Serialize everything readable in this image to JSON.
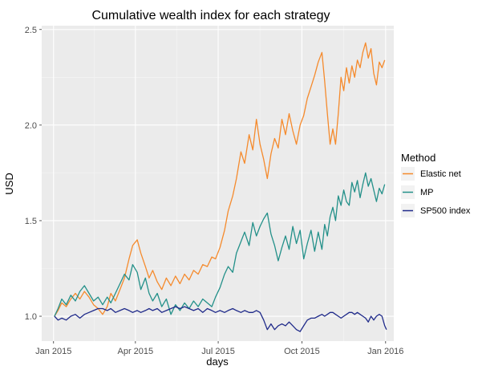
{
  "chart_data": {
    "type": "line",
    "title": "Cumulative wealth index for each strategy",
    "xlabel": "days",
    "ylabel": "USD",
    "x_ticks": [
      "Jan 2015",
      "Apr 2015",
      "Jul 2015",
      "Oct 2015",
      "Jan 2016"
    ],
    "x_tick_dates": [
      "2015-01-01",
      "2015-04-01",
      "2015-07-01",
      "2015-10-01",
      "2016-01-01"
    ],
    "xlim": [
      "2014-12-19",
      "2016-01-10"
    ],
    "y_ticks": [
      "1.0",
      "1.5",
      "2.0",
      "2.5"
    ],
    "y_tick_values": [
      1.0,
      1.5,
      2.0,
      2.5
    ],
    "ylim": [
      0.87,
      2.52
    ],
    "grid": true,
    "legend": {
      "title": "Method",
      "position": "right",
      "entries": [
        "Elastic net",
        "MP",
        "SP500 index"
      ]
    },
    "series": [
      {
        "name": "Elastic net",
        "color": "#f58a2c",
        "points": [
          [
            "2015-01-02",
            1.0
          ],
          [
            "2015-01-06",
            1.03
          ],
          [
            "2015-01-10",
            1.07
          ],
          [
            "2015-01-15",
            1.05
          ],
          [
            "2015-01-20",
            1.09
          ],
          [
            "2015-01-25",
            1.12
          ],
          [
            "2015-01-30",
            1.09
          ],
          [
            "2015-02-04",
            1.13
          ],
          [
            "2015-02-09",
            1.1
          ],
          [
            "2015-02-14",
            1.06
          ],
          [
            "2015-02-19",
            1.04
          ],
          [
            "2015-02-24",
            1.01
          ],
          [
            "2015-03-01",
            1.05
          ],
          [
            "2015-03-05",
            1.12
          ],
          [
            "2015-03-10",
            1.08
          ],
          [
            "2015-03-15",
            1.14
          ],
          [
            "2015-03-20",
            1.2
          ],
          [
            "2015-03-25",
            1.3
          ],
          [
            "2015-03-29",
            1.37
          ],
          [
            "2015-04-03",
            1.4
          ],
          [
            "2015-04-07",
            1.33
          ],
          [
            "2015-04-12",
            1.26
          ],
          [
            "2015-04-16",
            1.2
          ],
          [
            "2015-04-20",
            1.24
          ],
          [
            "2015-04-25",
            1.18
          ],
          [
            "2015-04-30",
            1.14
          ],
          [
            "2015-05-05",
            1.2
          ],
          [
            "2015-05-10",
            1.16
          ],
          [
            "2015-05-15",
            1.21
          ],
          [
            "2015-05-20",
            1.17
          ],
          [
            "2015-05-25",
            1.22
          ],
          [
            "2015-05-30",
            1.19
          ],
          [
            "2015-06-04",
            1.24
          ],
          [
            "2015-06-09",
            1.22
          ],
          [
            "2015-06-14",
            1.27
          ],
          [
            "2015-06-19",
            1.26
          ],
          [
            "2015-06-24",
            1.31
          ],
          [
            "2015-06-28",
            1.3
          ],
          [
            "2015-07-03",
            1.36
          ],
          [
            "2015-07-08",
            1.45
          ],
          [
            "2015-07-12",
            1.55
          ],
          [
            "2015-07-17",
            1.63
          ],
          [
            "2015-07-21",
            1.72
          ],
          [
            "2015-07-26",
            1.86
          ],
          [
            "2015-07-30",
            1.8
          ],
          [
            "2015-08-04",
            1.95
          ],
          [
            "2015-08-08",
            1.87
          ],
          [
            "2015-08-12",
            2.03
          ],
          [
            "2015-08-16",
            1.9
          ],
          [
            "2015-08-20",
            1.82
          ],
          [
            "2015-08-24",
            1.72
          ],
          [
            "2015-08-28",
            1.85
          ],
          [
            "2015-09-01",
            1.93
          ],
          [
            "2015-09-05",
            1.88
          ],
          [
            "2015-09-09",
            2.03
          ],
          [
            "2015-09-13",
            1.95
          ],
          [
            "2015-09-17",
            2.06
          ],
          [
            "2015-09-21",
            1.97
          ],
          [
            "2015-09-25",
            1.9
          ],
          [
            "2015-09-29",
            2.0
          ],
          [
            "2015-10-03",
            2.05
          ],
          [
            "2015-10-07",
            2.14
          ],
          [
            "2015-10-11",
            2.2
          ],
          [
            "2015-10-15",
            2.26
          ],
          [
            "2015-10-19",
            2.33
          ],
          [
            "2015-10-23",
            2.38
          ],
          [
            "2015-10-26",
            2.23
          ],
          [
            "2015-10-29",
            2.06
          ],
          [
            "2015-11-01",
            1.9
          ],
          [
            "2015-11-04",
            1.98
          ],
          [
            "2015-11-07",
            1.9
          ],
          [
            "2015-11-10",
            2.06
          ],
          [
            "2015-11-13",
            2.25
          ],
          [
            "2015-11-16",
            2.18
          ],
          [
            "2015-11-19",
            2.3
          ],
          [
            "2015-11-22",
            2.22
          ],
          [
            "2015-11-25",
            2.31
          ],
          [
            "2015-11-28",
            2.25
          ],
          [
            "2015-12-01",
            2.34
          ],
          [
            "2015-12-04",
            2.3
          ],
          [
            "2015-12-07",
            2.38
          ],
          [
            "2015-12-10",
            2.43
          ],
          [
            "2015-12-13",
            2.35
          ],
          [
            "2015-12-16",
            2.4
          ],
          [
            "2015-12-19",
            2.27
          ],
          [
            "2015-12-22",
            2.21
          ],
          [
            "2015-12-25",
            2.33
          ],
          [
            "2015-12-28",
            2.3
          ],
          [
            "2015-12-31",
            2.34
          ]
        ]
      },
      {
        "name": "MP",
        "color": "#239089",
        "points": [
          [
            "2015-01-02",
            1.0
          ],
          [
            "2015-01-06",
            1.04
          ],
          [
            "2015-01-10",
            1.09
          ],
          [
            "2015-01-15",
            1.06
          ],
          [
            "2015-01-20",
            1.11
          ],
          [
            "2015-01-25",
            1.08
          ],
          [
            "2015-01-30",
            1.13
          ],
          [
            "2015-02-04",
            1.16
          ],
          [
            "2015-02-09",
            1.12
          ],
          [
            "2015-02-14",
            1.08
          ],
          [
            "2015-02-19",
            1.1
          ],
          [
            "2015-02-24",
            1.06
          ],
          [
            "2015-03-01",
            1.1
          ],
          [
            "2015-03-05",
            1.07
          ],
          [
            "2015-03-10",
            1.12
          ],
          [
            "2015-03-15",
            1.17
          ],
          [
            "2015-03-20",
            1.22
          ],
          [
            "2015-03-25",
            1.19
          ],
          [
            "2015-03-29",
            1.27
          ],
          [
            "2015-04-03",
            1.23
          ],
          [
            "2015-04-07",
            1.14
          ],
          [
            "2015-04-12",
            1.2
          ],
          [
            "2015-04-16",
            1.12
          ],
          [
            "2015-04-20",
            1.08
          ],
          [
            "2015-04-25",
            1.12
          ],
          [
            "2015-04-30",
            1.05
          ],
          [
            "2015-05-05",
            1.09
          ],
          [
            "2015-05-10",
            1.01
          ],
          [
            "2015-05-15",
            1.06
          ],
          [
            "2015-05-20",
            1.03
          ],
          [
            "2015-05-25",
            1.07
          ],
          [
            "2015-05-30",
            1.04
          ],
          [
            "2015-06-04",
            1.08
          ],
          [
            "2015-06-09",
            1.05
          ],
          [
            "2015-06-14",
            1.09
          ],
          [
            "2015-06-19",
            1.07
          ],
          [
            "2015-06-24",
            1.05
          ],
          [
            "2015-06-28",
            1.1
          ],
          [
            "2015-07-03",
            1.15
          ],
          [
            "2015-07-08",
            1.22
          ],
          [
            "2015-07-12",
            1.26
          ],
          [
            "2015-07-17",
            1.23
          ],
          [
            "2015-07-21",
            1.33
          ],
          [
            "2015-07-26",
            1.39
          ],
          [
            "2015-07-30",
            1.44
          ],
          [
            "2015-08-04",
            1.37
          ],
          [
            "2015-08-08",
            1.49
          ],
          [
            "2015-08-12",
            1.42
          ],
          [
            "2015-08-16",
            1.47
          ],
          [
            "2015-08-20",
            1.51
          ],
          [
            "2015-08-24",
            1.54
          ],
          [
            "2015-08-28",
            1.43
          ],
          [
            "2015-09-01",
            1.37
          ],
          [
            "2015-09-05",
            1.29
          ],
          [
            "2015-09-09",
            1.36
          ],
          [
            "2015-09-13",
            1.42
          ],
          [
            "2015-09-17",
            1.35
          ],
          [
            "2015-09-21",
            1.47
          ],
          [
            "2015-09-25",
            1.38
          ],
          [
            "2015-09-29",
            1.45
          ],
          [
            "2015-10-03",
            1.3
          ],
          [
            "2015-10-07",
            1.38
          ],
          [
            "2015-10-11",
            1.45
          ],
          [
            "2015-10-15",
            1.34
          ],
          [
            "2015-10-19",
            1.44
          ],
          [
            "2015-10-23",
            1.35
          ],
          [
            "2015-10-26",
            1.48
          ],
          [
            "2015-10-29",
            1.42
          ],
          [
            "2015-11-01",
            1.52
          ],
          [
            "2015-11-04",
            1.57
          ],
          [
            "2015-11-07",
            1.5
          ],
          [
            "2015-11-10",
            1.63
          ],
          [
            "2015-11-13",
            1.58
          ],
          [
            "2015-11-16",
            1.66
          ],
          [
            "2015-11-19",
            1.6
          ],
          [
            "2015-11-22",
            1.58
          ],
          [
            "2015-11-25",
            1.7
          ],
          [
            "2015-11-28",
            1.65
          ],
          [
            "2015-12-01",
            1.71
          ],
          [
            "2015-12-04",
            1.62
          ],
          [
            "2015-12-07",
            1.69
          ],
          [
            "2015-12-10",
            1.75
          ],
          [
            "2015-12-13",
            1.68
          ],
          [
            "2015-12-16",
            1.72
          ],
          [
            "2015-12-19",
            1.66
          ],
          [
            "2015-12-22",
            1.6
          ],
          [
            "2015-12-25",
            1.67
          ],
          [
            "2015-12-28",
            1.64
          ],
          [
            "2015-12-31",
            1.69
          ]
        ]
      },
      {
        "name": "SP500 index",
        "color": "#1f2a8a",
        "points": [
          [
            "2015-01-02",
            1.0
          ],
          [
            "2015-01-06",
            0.98
          ],
          [
            "2015-01-10",
            0.99
          ],
          [
            "2015-01-15",
            0.98
          ],
          [
            "2015-01-20",
            1.0
          ],
          [
            "2015-01-25",
            1.01
          ],
          [
            "2015-01-30",
            0.99
          ],
          [
            "2015-02-04",
            1.01
          ],
          [
            "2015-02-09",
            1.02
          ],
          [
            "2015-02-14",
            1.03
          ],
          [
            "2015-02-19",
            1.04
          ],
          [
            "2015-02-24",
            1.04
          ],
          [
            "2015-03-01",
            1.03
          ],
          [
            "2015-03-05",
            1.04
          ],
          [
            "2015-03-10",
            1.02
          ],
          [
            "2015-03-15",
            1.03
          ],
          [
            "2015-03-20",
            1.04
          ],
          [
            "2015-03-25",
            1.03
          ],
          [
            "2015-03-29",
            1.02
          ],
          [
            "2015-04-03",
            1.03
          ],
          [
            "2015-04-07",
            1.02
          ],
          [
            "2015-04-12",
            1.03
          ],
          [
            "2015-04-16",
            1.04
          ],
          [
            "2015-04-20",
            1.03
          ],
          [
            "2015-04-25",
            1.04
          ],
          [
            "2015-04-30",
            1.02
          ],
          [
            "2015-05-05",
            1.03
          ],
          [
            "2015-05-10",
            1.04
          ],
          [
            "2015-05-15",
            1.05
          ],
          [
            "2015-05-20",
            1.04
          ],
          [
            "2015-05-25",
            1.05
          ],
          [
            "2015-05-30",
            1.04
          ],
          [
            "2015-06-04",
            1.03
          ],
          [
            "2015-06-09",
            1.04
          ],
          [
            "2015-06-14",
            1.02
          ],
          [
            "2015-06-19",
            1.04
          ],
          [
            "2015-06-24",
            1.03
          ],
          [
            "2015-06-28",
            1.02
          ],
          [
            "2015-07-03",
            1.03
          ],
          [
            "2015-07-08",
            1.02
          ],
          [
            "2015-07-12",
            1.03
          ],
          [
            "2015-07-17",
            1.04
          ],
          [
            "2015-07-21",
            1.03
          ],
          [
            "2015-07-26",
            1.02
          ],
          [
            "2015-07-30",
            1.03
          ],
          [
            "2015-08-04",
            1.02
          ],
          [
            "2015-08-08",
            1.02
          ],
          [
            "2015-08-12",
            1.03
          ],
          [
            "2015-08-16",
            1.02
          ],
          [
            "2015-08-20",
            0.98
          ],
          [
            "2015-08-24",
            0.93
          ],
          [
            "2015-08-28",
            0.96
          ],
          [
            "2015-09-01",
            0.93
          ],
          [
            "2015-09-05",
            0.95
          ],
          [
            "2015-09-09",
            0.96
          ],
          [
            "2015-09-13",
            0.95
          ],
          [
            "2015-09-17",
            0.97
          ],
          [
            "2015-09-21",
            0.95
          ],
          [
            "2015-09-25",
            0.93
          ],
          [
            "2015-09-29",
            0.92
          ],
          [
            "2015-10-03",
            0.95
          ],
          [
            "2015-10-07",
            0.98
          ],
          [
            "2015-10-11",
            0.99
          ],
          [
            "2015-10-15",
            0.99
          ],
          [
            "2015-10-19",
            1.0
          ],
          [
            "2015-10-23",
            1.01
          ],
          [
            "2015-10-26",
            1.0
          ],
          [
            "2015-10-29",
            1.01
          ],
          [
            "2015-11-01",
            1.02
          ],
          [
            "2015-11-04",
            1.02
          ],
          [
            "2015-11-07",
            1.01
          ],
          [
            "2015-11-10",
            1.0
          ],
          [
            "2015-11-13",
            0.99
          ],
          [
            "2015-11-16",
            1.0
          ],
          [
            "2015-11-19",
            1.01
          ],
          [
            "2015-11-22",
            1.02
          ],
          [
            "2015-11-25",
            1.02
          ],
          [
            "2015-11-28",
            1.01
          ],
          [
            "2015-12-01",
            1.02
          ],
          [
            "2015-12-04",
            1.01
          ],
          [
            "2015-12-07",
            1.0
          ],
          [
            "2015-12-10",
            0.99
          ],
          [
            "2015-12-13",
            0.97
          ],
          [
            "2015-12-16",
            1.0
          ],
          [
            "2015-12-19",
            0.98
          ],
          [
            "2015-12-22",
            1.0
          ],
          [
            "2015-12-25",
            1.01
          ],
          [
            "2015-12-28",
            1.0
          ],
          [
            "2015-12-31",
            0.95
          ],
          [
            "2016-01-02",
            0.93
          ]
        ]
      }
    ]
  }
}
